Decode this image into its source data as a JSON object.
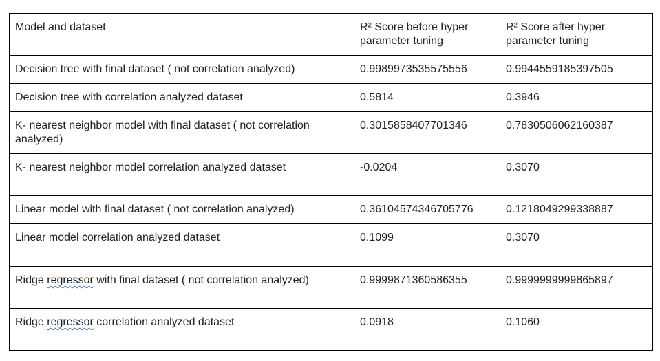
{
  "table": {
    "header": {
      "model": "Model and dataset",
      "before": "R² Score before hyper parameter tuning",
      "after": "R² Score after hyper parameter tuning"
    },
    "rows": [
      {
        "model": "Decision tree with final dataset ( not correlation analyzed)",
        "before": "0.9989973535575556",
        "after": "0.9944559185397505"
      },
      {
        "model": "Decision tree with correlation analyzed dataset",
        "before": "0.5814",
        "after": "0.3946"
      },
      {
        "model": "K- nearest neighbor model with final dataset ( not correlation analyzed)",
        "before": "0.3015858407701346",
        "after": "0.7830506062160387"
      },
      {
        "model": "K- nearest neighbor model correlation analyzed dataset",
        "before": "-0.0204",
        "after": "0.3070"
      },
      {
        "model": "Linear model with final dataset ( not correlation analyzed)",
        "before": "0.36104574346705776",
        "after": "0.1218049299338887"
      },
      {
        "model": "Linear model correlation analyzed dataset",
        "before": "0.1099",
        "after": "0.3070"
      },
      {
        "model_parts": [
          "Ridge ",
          "regressor",
          " with final dataset ( not correlation analyzed)"
        ],
        "before": "0.9999871360586355",
        "after": "0.9999999999865897"
      },
      {
        "model_parts": [
          "Ridge ",
          "regressor",
          " correlation analyzed dataset"
        ],
        "before": "0.0918",
        "after": "0.1060"
      }
    ]
  }
}
